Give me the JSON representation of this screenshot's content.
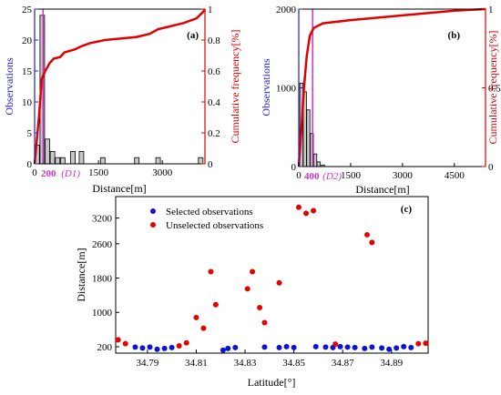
{
  "colors": {
    "primary_axis": "#1f1fd2",
    "secondary_axis": "#e00000",
    "bars": "#c8c8c8",
    "threshold": "#cc33cc",
    "selected": "#0a14d2",
    "unselected": "#e60000"
  },
  "chart_data": [
    {
      "panel": "(a)",
      "type": "bar",
      "ylabel": "Observations",
      "y2label": "Cumulative frequency[%]",
      "xlabel": "Distance[m]",
      "xlim": [
        0,
        4000
      ],
      "ylim": [
        0,
        25
      ],
      "y2lim": [
        0,
        1
      ],
      "xticks": [
        0,
        1500,
        3000
      ],
      "yticks": [
        0,
        5,
        10,
        15,
        20,
        25
      ],
      "y2ticks": [
        0,
        0.2,
        0.4,
        0.6,
        0.8,
        1
      ],
      "threshold": {
        "value_label": "200",
        "name": "(D1)",
        "x": 200
      },
      "bars": [
        {
          "x": 60,
          "y": 3
        },
        {
          "x": 180,
          "y": 24
        },
        {
          "x": 300,
          "y": 4
        },
        {
          "x": 420,
          "y": 2
        },
        {
          "x": 540,
          "y": 1
        },
        {
          "x": 660,
          "y": 1
        },
        {
          "x": 900,
          "y": 2
        },
        {
          "x": 1100,
          "y": 2
        },
        {
          "x": 1600,
          "y": 1
        },
        {
          "x": 2400,
          "y": 1
        },
        {
          "x": 2900,
          "y": 1
        },
        {
          "x": 3900,
          "y": 1
        }
      ],
      "cumulative": [
        {
          "x": 0,
          "y": 0
        },
        {
          "x": 100,
          "y": 0.3
        },
        {
          "x": 170,
          "y": 0.55
        },
        {
          "x": 250,
          "y": 0.6
        },
        {
          "x": 350,
          "y": 0.65
        },
        {
          "x": 450,
          "y": 0.68
        },
        {
          "x": 600,
          "y": 0.69
        },
        {
          "x": 700,
          "y": 0.72
        },
        {
          "x": 950,
          "y": 0.74
        },
        {
          "x": 1100,
          "y": 0.76
        },
        {
          "x": 1300,
          "y": 0.78
        },
        {
          "x": 1650,
          "y": 0.8
        },
        {
          "x": 2400,
          "y": 0.82
        },
        {
          "x": 2700,
          "y": 0.84
        },
        {
          "x": 2900,
          "y": 0.87
        },
        {
          "x": 3500,
          "y": 0.91
        },
        {
          "x": 3800,
          "y": 0.94
        },
        {
          "x": 3950,
          "y": 0.98
        },
        {
          "x": 4000,
          "y": 1.0
        }
      ]
    },
    {
      "panel": "(b)",
      "type": "bar",
      "ylabel": "Observations",
      "y2label": "Cumulative frequency[%]",
      "xlabel": "Distance[m]",
      "xlim": [
        0,
        5400
      ],
      "ylim": [
        0,
        2000
      ],
      "y2lim": [
        0,
        1
      ],
      "xticks": [
        0,
        1500,
        3000,
        4500
      ],
      "yticks": [
        0,
        1000,
        2000
      ],
      "y2ticks": [
        0,
        0.5,
        1
      ],
      "threshold": {
        "value_label": "400",
        "name": "(D2)",
        "x": 400
      },
      "bars": [
        {
          "x": 75,
          "y": 1060
        },
        {
          "x": 175,
          "y": 950
        },
        {
          "x": 275,
          "y": 720
        },
        {
          "x": 375,
          "y": 420
        },
        {
          "x": 475,
          "y": 160
        },
        {
          "x": 575,
          "y": 60
        },
        {
          "x": 700,
          "y": 20
        }
      ],
      "cumulative": [
        {
          "x": 0,
          "y": 0
        },
        {
          "x": 80,
          "y": 0.25
        },
        {
          "x": 150,
          "y": 0.5
        },
        {
          "x": 230,
          "y": 0.7
        },
        {
          "x": 320,
          "y": 0.83
        },
        {
          "x": 430,
          "y": 0.88
        },
        {
          "x": 700,
          "y": 0.91
        },
        {
          "x": 1500,
          "y": 0.93
        },
        {
          "x": 3000,
          "y": 0.96
        },
        {
          "x": 4500,
          "y": 0.99
        },
        {
          "x": 5400,
          "y": 1.0
        }
      ]
    },
    {
      "panel": "(c)",
      "type": "scatter",
      "xlabel": "Latitude[°]",
      "ylabel": "Distance[m]",
      "xlim": [
        34.777,
        34.905
      ],
      "ylim": [
        50,
        3700
      ],
      "xticks": [
        34.79,
        34.81,
        34.83,
        34.85,
        34.87,
        34.89
      ],
      "yticks": [
        200,
        1000,
        1800,
        2600,
        3200
      ],
      "series": [
        {
          "name": "Selected observations",
          "points": [
            {
              "x": 34.785,
              "y": 190
            },
            {
              "x": 34.788,
              "y": 170
            },
            {
              "x": 34.791,
              "y": 190
            },
            {
              "x": 34.794,
              "y": 140
            },
            {
              "x": 34.797,
              "y": 160
            },
            {
              "x": 34.8,
              "y": 180
            },
            {
              "x": 34.821,
              "y": 120
            },
            {
              "x": 34.823,
              "y": 160
            },
            {
              "x": 34.826,
              "y": 180
            },
            {
              "x": 34.838,
              "y": 190
            },
            {
              "x": 34.844,
              "y": 180
            },
            {
              "x": 34.847,
              "y": 200
            },
            {
              "x": 34.85,
              "y": 180
            },
            {
              "x": 34.859,
              "y": 200
            },
            {
              "x": 34.863,
              "y": 190
            },
            {
              "x": 34.866,
              "y": 180
            },
            {
              "x": 34.869,
              "y": 200
            },
            {
              "x": 34.872,
              "y": 190
            },
            {
              "x": 34.875,
              "y": 180
            },
            {
              "x": 34.879,
              "y": 160
            },
            {
              "x": 34.882,
              "y": 190
            },
            {
              "x": 34.886,
              "y": 170
            },
            {
              "x": 34.889,
              "y": 140
            },
            {
              "x": 34.892,
              "y": 170
            },
            {
              "x": 34.895,
              "y": 200
            },
            {
              "x": 34.898,
              "y": 180
            }
          ]
        },
        {
          "name": "Unselected observations",
          "points": [
            {
              "x": 34.778,
              "y": 360
            },
            {
              "x": 34.781,
              "y": 270
            },
            {
              "x": 34.803,
              "y": 220
            },
            {
              "x": 34.806,
              "y": 290
            },
            {
              "x": 34.81,
              "y": 880
            },
            {
              "x": 34.813,
              "y": 630
            },
            {
              "x": 34.816,
              "y": 1950
            },
            {
              "x": 34.818,
              "y": 1180
            },
            {
              "x": 34.831,
              "y": 1550
            },
            {
              "x": 34.833,
              "y": 1950
            },
            {
              "x": 34.836,
              "y": 1110
            },
            {
              "x": 34.838,
              "y": 760
            },
            {
              "x": 34.844,
              "y": 1690
            },
            {
              "x": 34.852,
              "y": 3450
            },
            {
              "x": 34.855,
              "y": 3310
            },
            {
              "x": 34.858,
              "y": 3370
            },
            {
              "x": 34.867,
              "y": 260
            },
            {
              "x": 34.88,
              "y": 2810
            },
            {
              "x": 34.882,
              "y": 2630
            },
            {
              "x": 34.901,
              "y": 270
            },
            {
              "x": 34.904,
              "y": 280
            }
          ]
        }
      ]
    }
  ]
}
